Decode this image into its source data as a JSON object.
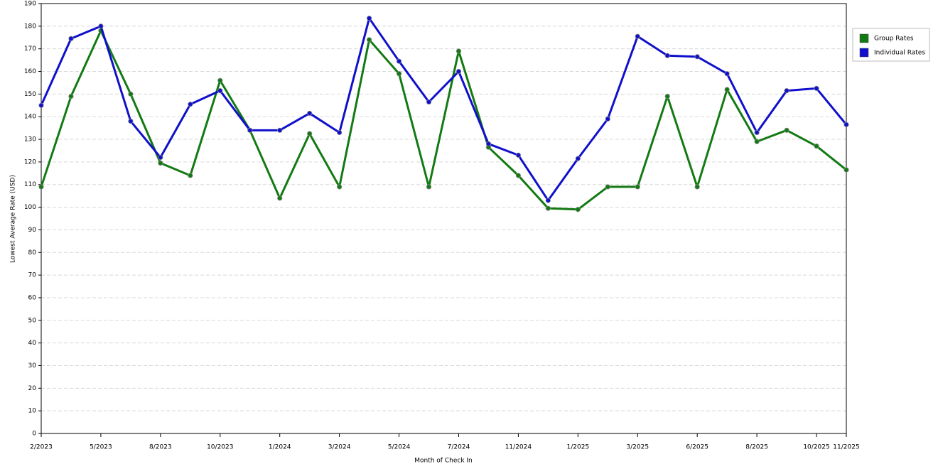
{
  "chart_data": {
    "type": "line",
    "x_label": "Month of Check In",
    "y_label": "Lowest Average Rate (USD)",
    "categories": [
      "2/2023",
      null,
      "5/2023",
      null,
      "8/2023",
      null,
      "10/2023",
      null,
      "1/2024",
      null,
      "3/2024",
      null,
      "5/2024",
      null,
      "7/2024",
      null,
      "11/2024",
      null,
      "1/2025",
      null,
      "3/2025",
      null,
      "6/2025",
      null,
      "8/2025",
      null,
      "10/2025",
      "11/2025"
    ],
    "series": [
      {
        "name": "Group Rates",
        "color": "#137a13",
        "values": [
          109,
          149,
          178,
          150,
          119.5,
          114,
          156,
          134,
          104,
          132.5,
          109,
          174,
          159,
          109,
          169,
          126.5,
          114,
          99.5,
          99,
          109,
          109,
          149,
          109,
          152,
          129,
          134,
          127,
          116.5
        ]
      },
      {
        "name": "Individual Rates",
        "color": "#1010cc",
        "values": [
          145,
          174.5,
          180,
          138,
          122,
          145.5,
          151.5,
          134,
          134,
          141.5,
          133,
          183.5,
          164.5,
          146.5,
          160,
          128,
          123,
          103,
          121.5,
          139,
          175.5,
          167,
          166.5,
          159,
          133,
          151.5,
          152.5,
          136.5
        ]
      }
    ],
    "ylim": [
      0,
      190
    ],
    "yticks": [
      0,
      10,
      20,
      30,
      40,
      50,
      60,
      70,
      80,
      90,
      100,
      110,
      120,
      130,
      140,
      150,
      160,
      170,
      180,
      190
    ],
    "grid": true,
    "legend": "right"
  }
}
